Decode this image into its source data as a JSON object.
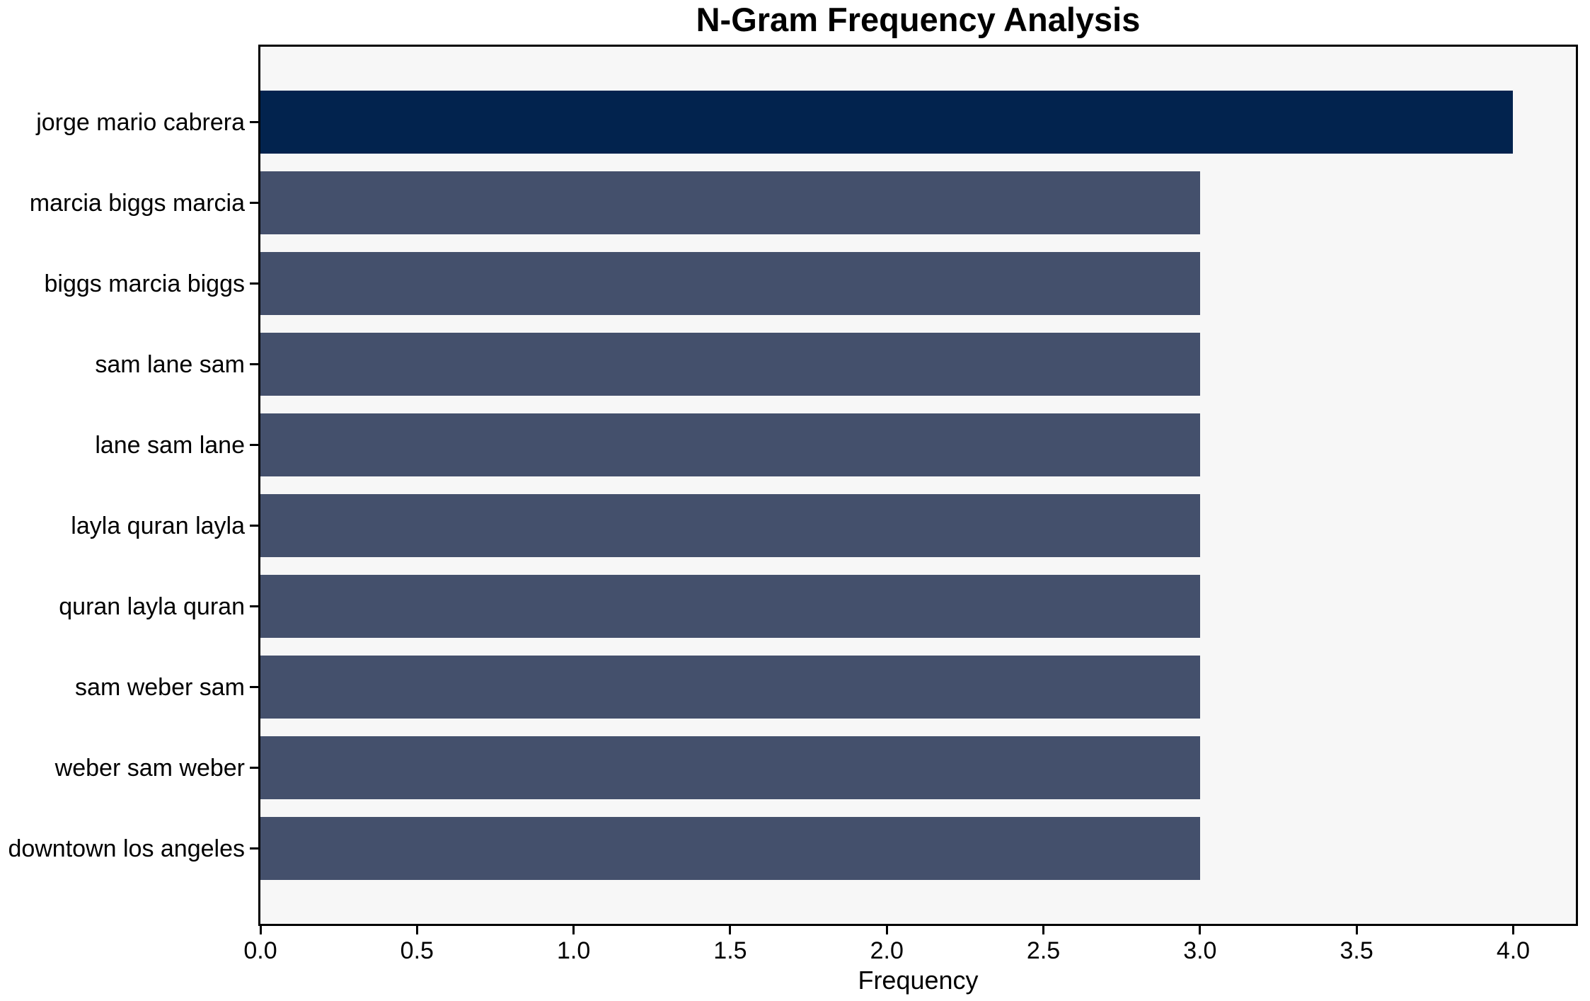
{
  "chart_data": {
    "type": "bar",
    "orientation": "horizontal",
    "title": "N-Gram Frequency Analysis",
    "xlabel": "Frequency",
    "ylabel": "",
    "categories": [
      "jorge mario cabrera",
      "marcia biggs marcia",
      "biggs marcia biggs",
      "sam lane sam",
      "lane sam lane",
      "layla quran layla",
      "quran layla quran",
      "sam weber sam",
      "weber sam weber",
      "downtown los angeles"
    ],
    "values": [
      4,
      3,
      3,
      3,
      3,
      3,
      3,
      3,
      3,
      3
    ],
    "bar_colors": [
      "#02234e",
      "#44506c",
      "#44506c",
      "#44506c",
      "#44506c",
      "#44506c",
      "#44506c",
      "#44506c",
      "#44506c",
      "#44506c"
    ],
    "xticks": [
      "0.0",
      "0.5",
      "1.0",
      "1.5",
      "2.0",
      "2.5",
      "3.0",
      "3.5",
      "4.0"
    ],
    "xtick_values": [
      0,
      0.5,
      1,
      1.5,
      2,
      2.5,
      3,
      3.5,
      4
    ],
    "xlim": [
      0,
      4.2
    ],
    "grid": false,
    "legend": null,
    "colors": {
      "plot_background": "#f7f7f7",
      "figure_background": "#ffffff",
      "spine": "#000000",
      "text": "#000000"
    }
  }
}
